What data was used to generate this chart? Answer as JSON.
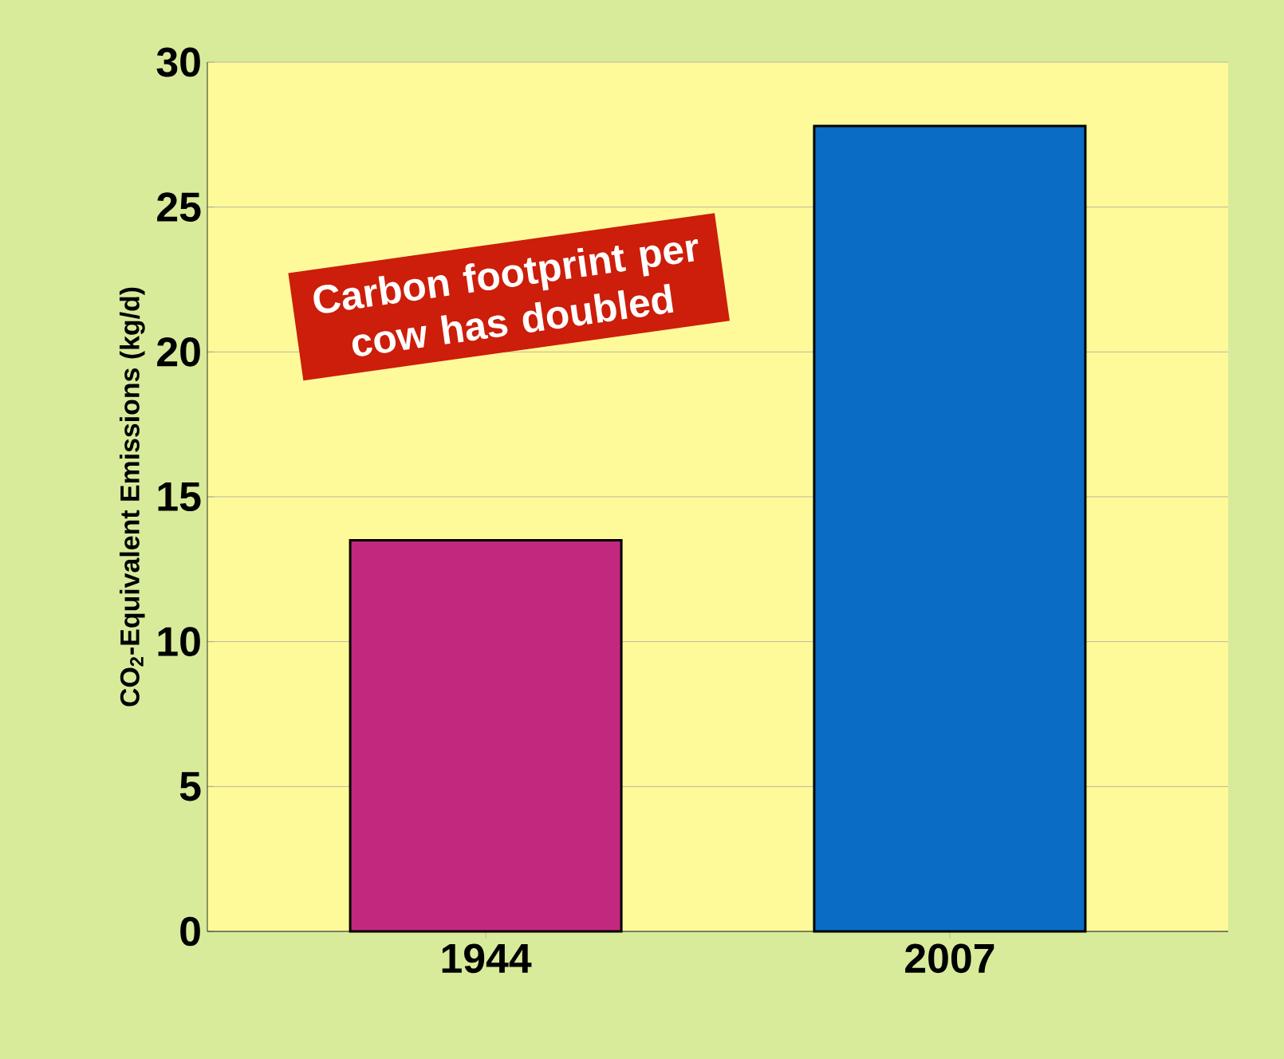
{
  "chart_data": {
    "type": "bar",
    "ylabel": "CO$_{2}$-Equivalent Emissions (kg/d)",
    "categories": [
      "1944",
      "2007"
    ],
    "values": [
      13.5,
      27.8
    ],
    "colors": [
      "#c2287e",
      "#0a6cc4"
    ],
    "ylim": [
      0,
      30
    ],
    "yticks": [
      0,
      5,
      10,
      15,
      20,
      25,
      30
    ],
    "grid": "y",
    "annotations": [
      "Carbon footprint per cow has doubled"
    ]
  }
}
